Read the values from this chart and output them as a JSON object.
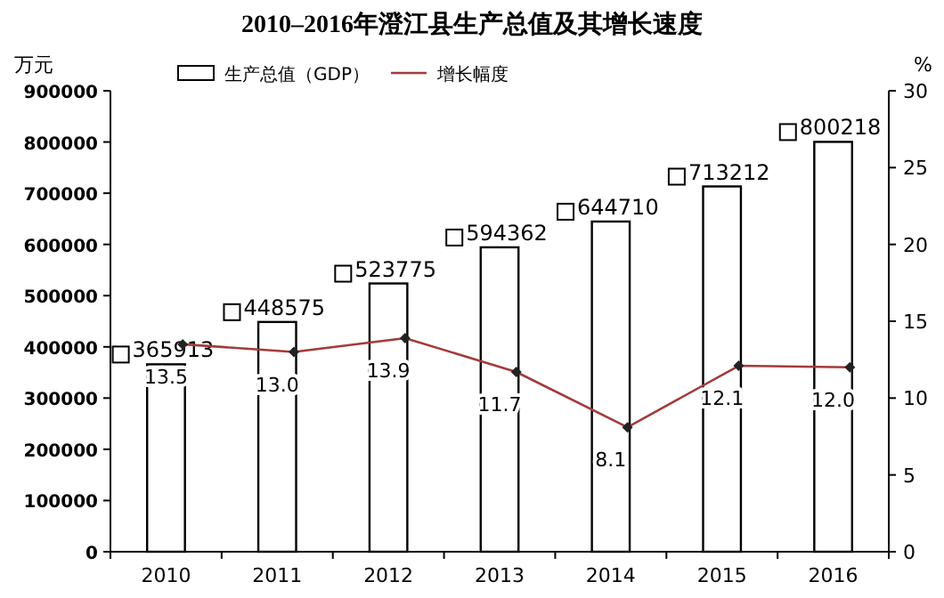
{
  "chart_data": {
    "type": "bar",
    "title": "2010–2016年澄江县生产总值及其增长速度",
    "categories": [
      "2010",
      "2011",
      "2012",
      "2013",
      "2014",
      "2015",
      "2016"
    ],
    "series": [
      {
        "name": "生产总值（GDP）",
        "color": "#ffffff",
        "values": [
          365913,
          448575,
          523775,
          594362,
          644710,
          713212,
          800218
        ],
        "value_labels": [
          "365913",
          "448575",
          "523775",
          "594362",
          "644710",
          "713212",
          "800218"
        ]
      },
      {
        "name": "增长幅度",
        "type": "line",
        "axis": "y2",
        "color": "#a33a3a",
        "marker": "diamond",
        "values": [
          13.5,
          13.0,
          13.9,
          11.7,
          8.1,
          12.1,
          12.0
        ],
        "value_labels": [
          "13.5",
          "13.0",
          "13.9",
          "11.7",
          "8.1",
          "12.1",
          "12.0"
        ]
      }
    ],
    "ylabel": "万元",
    "y2label": "%",
    "ylim": [
      0,
      900000
    ],
    "yticks": [
      0,
      100000,
      200000,
      300000,
      400000,
      500000,
      600000,
      700000,
      800000,
      900000
    ],
    "y2lim": [
      0,
      30
    ],
    "y2ticks": [
      0,
      5,
      10,
      15,
      20,
      25,
      30
    ],
    "legend": "top",
    "grid": false
  }
}
